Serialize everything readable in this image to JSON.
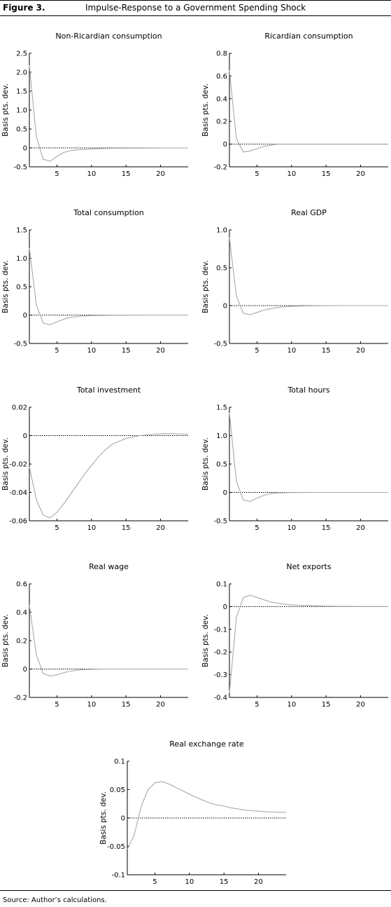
{
  "figure": {
    "label": "Figure 3.",
    "title": "Impulse-Response to a Government Spending Shock",
    "source": "Source: Author’s calculations.",
    "line_color": "#a8a8a8",
    "zero_line_color": "#000000"
  },
  "chart_data": [
    {
      "type": "line",
      "title": "Non-Ricardian consumption",
      "ylabel": "Basis pts. dev.",
      "xlabel": "",
      "x": [
        1,
        2,
        3,
        4,
        5,
        6,
        7,
        8,
        9,
        10,
        11,
        12,
        13,
        14,
        15,
        16,
        17,
        18,
        19,
        20,
        21,
        22,
        23,
        24
      ],
      "xlim": [
        1,
        24
      ],
      "ylim": [
        -0.5,
        2.5
      ],
      "xticks": [
        "5",
        "10",
        "15",
        "20"
      ],
      "yticks": [
        "-0.5",
        "0",
        "0.5",
        "1.0",
        "1.5",
        "2.0",
        "2.5"
      ],
      "series": [
        {
          "values": [
            2.18,
            0.3,
            -0.3,
            -0.35,
            -0.22,
            -0.12,
            -0.07,
            -0.05,
            -0.04,
            -0.03,
            -0.02,
            -0.015,
            -0.01,
            -0.01,
            -0.008,
            -0.006,
            -0.005,
            -0.004,
            -0.003,
            -0.002,
            -0.002,
            -0.001,
            -0.001,
            0
          ]
        }
      ]
    },
    {
      "type": "line",
      "title": "Ricardian consumption",
      "ylabel": "Basis pts. dev.",
      "xlabel": "",
      "x": [
        1,
        2,
        3,
        4,
        5,
        6,
        7,
        8,
        9,
        10,
        11,
        12,
        13,
        14,
        15,
        16,
        17,
        18,
        19,
        20,
        21,
        22,
        23,
        24
      ],
      "xlim": [
        1,
        24
      ],
      "ylim": [
        -0.2,
        0.8
      ],
      "xticks": [
        "5",
        "10",
        "15",
        "20"
      ],
      "yticks": [
        "-0.2",
        "0",
        "0.2",
        "0.4",
        "0.6",
        "0.8"
      ],
      "series": [
        {
          "values": [
            0.65,
            0.05,
            -0.07,
            -0.06,
            -0.04,
            -0.02,
            -0.01,
            0,
            0,
            0,
            0,
            0,
            0,
            0,
            0,
            0,
            0,
            0,
            0,
            0,
            0,
            0,
            0,
            0
          ]
        }
      ]
    },
    {
      "type": "line",
      "title": "Total consumption",
      "ylabel": "Basis pts. dev.",
      "xlabel": "",
      "x": [
        1,
        2,
        3,
        4,
        5,
        6,
        7,
        8,
        9,
        10,
        11,
        12,
        13,
        14,
        15,
        16,
        17,
        18,
        19,
        20,
        21,
        22,
        23,
        24
      ],
      "xlim": [
        1,
        24
      ],
      "ylim": [
        -0.5,
        1.5
      ],
      "xticks": [
        "5",
        "10",
        "15",
        "20"
      ],
      "yticks": [
        "-0.5",
        "0",
        "0.5",
        "1.0",
        "1.5"
      ],
      "series": [
        {
          "values": [
            1.18,
            0.18,
            -0.14,
            -0.17,
            -0.12,
            -0.07,
            -0.04,
            -0.025,
            -0.015,
            -0.01,
            -0.007,
            -0.005,
            -0.003,
            -0.002,
            -0.002,
            -0.001,
            -0.001,
            0,
            0,
            0,
            0,
            0,
            0,
            0
          ]
        }
      ]
    },
    {
      "type": "line",
      "title": "Real GDP",
      "ylabel": "Basis pts. dev.",
      "xlabel": "",
      "x": [
        1,
        2,
        3,
        4,
        5,
        6,
        7,
        8,
        9,
        10,
        11,
        12,
        13,
        14,
        15,
        16,
        17,
        18,
        19,
        20,
        21,
        22,
        23,
        24
      ],
      "xlim": [
        1,
        24
      ],
      "ylim": [
        -0.5,
        1.0
      ],
      "xticks": [
        "5",
        "10",
        "15",
        "20"
      ],
      "yticks": [
        "-0.5",
        "0",
        "0.5",
        "1.0"
      ],
      "series": [
        {
          "values": [
            0.9,
            0.13,
            -0.1,
            -0.12,
            -0.09,
            -0.06,
            -0.04,
            -0.025,
            -0.015,
            -0.01,
            -0.007,
            -0.005,
            -0.003,
            -0.002,
            -0.001,
            -0.001,
            0,
            0,
            0,
            0,
            0,
            0,
            0,
            0
          ]
        }
      ]
    },
    {
      "type": "line",
      "title": "Total investment",
      "ylabel": "Basis pts. dev.",
      "xlabel": "",
      "x": [
        1,
        2,
        3,
        4,
        5,
        6,
        7,
        8,
        9,
        10,
        11,
        12,
        13,
        14,
        15,
        16,
        17,
        18,
        19,
        20,
        21,
        22,
        23,
        24
      ],
      "xlim": [
        1,
        24
      ],
      "ylim": [
        -0.06,
        0.02
      ],
      "xticks": [
        "5",
        "10",
        "15",
        "20"
      ],
      "yticks": [
        "-0.06",
        "-0.04",
        "-0.02",
        "0",
        "0.02"
      ],
      "series": [
        {
          "values": [
            -0.022,
            -0.045,
            -0.056,
            -0.058,
            -0.054,
            -0.048,
            -0.041,
            -0.034,
            -0.027,
            -0.021,
            -0.015,
            -0.01,
            -0.006,
            -0.004,
            -0.002,
            -0.001,
            0,
            0.0005,
            0.001,
            0.0012,
            0.0013,
            0.0013,
            0.0012,
            0.001
          ]
        }
      ]
    },
    {
      "type": "line",
      "title": "Total hours",
      "ylabel": "Basis pts. dev.",
      "xlabel": "",
      "x": [
        1,
        2,
        3,
        4,
        5,
        6,
        7,
        8,
        9,
        10,
        11,
        12,
        13,
        14,
        15,
        16,
        17,
        18,
        19,
        20,
        21,
        22,
        23,
        24
      ],
      "xlim": [
        1,
        24
      ],
      "ylim": [
        -0.5,
        1.5
      ],
      "xticks": [
        "5",
        "10",
        "15",
        "20"
      ],
      "yticks": [
        "-0.5",
        "0",
        "0.5",
        "1.0",
        "1.5"
      ],
      "series": [
        {
          "values": [
            1.4,
            0.2,
            -0.13,
            -0.16,
            -0.1,
            -0.05,
            -0.02,
            -0.01,
            -0.005,
            -0.003,
            -0.002,
            -0.001,
            0,
            0,
            0,
            0,
            0,
            0,
            0,
            0,
            0,
            0,
            0,
            0
          ]
        }
      ]
    },
    {
      "type": "line",
      "title": "Real wage",
      "ylabel": "Basis pts. dev.",
      "xlabel": "",
      "x": [
        1,
        2,
        3,
        4,
        5,
        6,
        7,
        8,
        9,
        10,
        11,
        12,
        13,
        14,
        15,
        16,
        17,
        18,
        19,
        20,
        21,
        22,
        23,
        24
      ],
      "xlim": [
        1,
        24
      ],
      "ylim": [
        -0.2,
        0.6
      ],
      "xticks": [
        "5",
        "10",
        "15",
        "20"
      ],
      "yticks": [
        "-0.2",
        "0",
        "0.2",
        "0.4",
        "0.6"
      ],
      "series": [
        {
          "values": [
            0.45,
            0.1,
            -0.03,
            -0.05,
            -0.04,
            -0.025,
            -0.015,
            -0.008,
            -0.004,
            -0.002,
            -0.001,
            0,
            0,
            0,
            0,
            0,
            0,
            0,
            0,
            0,
            0,
            0,
            0,
            0
          ]
        }
      ]
    },
    {
      "type": "line",
      "title": "Net exports",
      "ylabel": "Basis pts. dev.",
      "xlabel": "",
      "x": [
        1,
        2,
        3,
        4,
        5,
        6,
        7,
        8,
        9,
        10,
        11,
        12,
        13,
        14,
        15,
        16,
        17,
        18,
        19,
        20,
        21,
        22,
        23,
        24
      ],
      "xlim": [
        1,
        24
      ],
      "ylim": [
        -0.4,
        0.1
      ],
      "xticks": [
        "5",
        "10",
        "15",
        "20"
      ],
      "yticks": [
        "-0.4",
        "-0.3",
        "-0.2",
        "-0.1",
        "0",
        "0.1"
      ],
      "series": [
        {
          "values": [
            -0.38,
            -0.05,
            0.04,
            0.05,
            0.04,
            0.03,
            0.02,
            0.015,
            0.01,
            0.008,
            0.006,
            0.005,
            0.004,
            0.003,
            0.002,
            0.002,
            0.001,
            0.001,
            0.001,
            0,
            0,
            0,
            0,
            0
          ]
        }
      ]
    },
    {
      "type": "line",
      "title": "Real exchange rate",
      "ylabel": "Basis pts. dev.",
      "xlabel": "",
      "x": [
        1,
        2,
        3,
        4,
        5,
        6,
        7,
        8,
        9,
        10,
        11,
        12,
        13,
        14,
        15,
        16,
        17,
        18,
        19,
        20,
        21,
        22,
        23,
        24
      ],
      "xlim": [
        1,
        24
      ],
      "ylim": [
        -0.1,
        0.1
      ],
      "xticks": [
        "5",
        "10",
        "15",
        "20"
      ],
      "yticks": [
        "-0.1",
        "-0.05",
        "0",
        "0.05",
        "0.1"
      ],
      "series": [
        {
          "values": [
            -0.055,
            -0.03,
            0.02,
            0.05,
            0.062,
            0.064,
            0.06,
            0.054,
            0.048,
            0.042,
            0.036,
            0.031,
            0.026,
            0.023,
            0.021,
            0.018,
            0.016,
            0.014,
            0.013,
            0.012,
            0.011,
            0.0105,
            0.01,
            0.01
          ]
        }
      ]
    }
  ]
}
